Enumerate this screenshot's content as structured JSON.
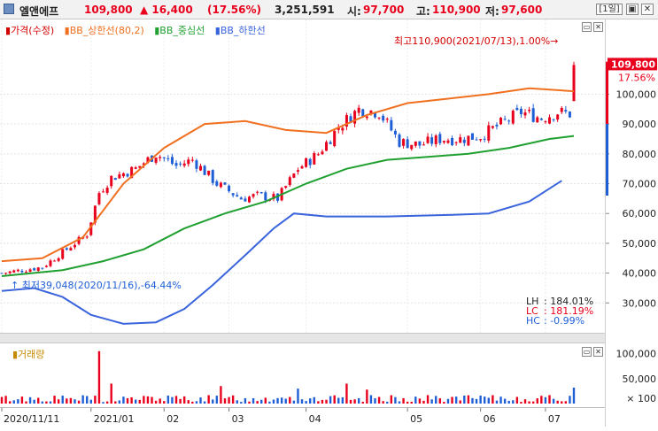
{
  "header": {
    "stock_name": "엘앤에프",
    "price": "109,800",
    "change": "▲ 16,400",
    "change_pct": "(17.56%)",
    "volume": "3,251,591",
    "open_label": "시:",
    "open": "97,700",
    "high_label": "고:",
    "high": "110,900",
    "low_label": "저:",
    "low": "97,600",
    "period_button": "[1일]",
    "colors": {
      "up": "#e8001c",
      "down": "#1f5fd6"
    }
  },
  "legend": {
    "price": "가격(수정)",
    "bb_upper": "BB_상한선(80,2)",
    "bb_mid": "BB_중심선",
    "bb_lower": "BB_하한선",
    "colors": {
      "price": "#d40000",
      "bb_upper": "#f07020",
      "bb_mid": "#20a030",
      "bb_lower": "#3a64dc"
    }
  },
  "annotations": {
    "high_note": "최고110,900(2021/07/13),1.00%→",
    "low_note": "↑ 최저39,048(2020/11/16),-64.44%",
    "stats": [
      {
        "label": "LH",
        "value": ": 184.01%",
        "color": "#222222"
      },
      {
        "label": "LC",
        "value": ": 181.19%",
        "color": "#e8001c"
      },
      {
        "label": "HC",
        "value": ": -0.99%",
        "color": "#1f5fd6"
      }
    ]
  },
  "price_axis": {
    "ticks": [
      "100,000",
      "90,000",
      "80,000",
      "70,000",
      "60,000",
      "50,000",
      "40,000",
      "30,000"
    ],
    "last_price": "109,800",
    "last_pct": "17.56%"
  },
  "volume_pane": {
    "label": "거래량",
    "ticks": [
      "100,000",
      "50,000"
    ],
    "unit": "× 100"
  },
  "date_axis": {
    "labels": [
      "2020/11/11",
      "2021/01",
      "02",
      "03",
      "04",
      "05",
      "06",
      "07"
    ]
  },
  "chart_data": {
    "type": "candlestick",
    "title": "엘앤에프",
    "ylim": [
      20000,
      112000
    ],
    "x_range": [
      "2020/11/11",
      "2021/07/13"
    ],
    "price_keypoints": [
      {
        "x": 0,
        "close": 40000
      },
      {
        "x": 10,
        "close": 42000
      },
      {
        "x": 16,
        "close": 48000
      },
      {
        "x": 21,
        "close": 53000
      },
      {
        "x": 24,
        "close": 67000
      },
      {
        "x": 27,
        "close": 72000
      },
      {
        "x": 33,
        "close": 75000
      },
      {
        "x": 38,
        "close": 80000
      },
      {
        "x": 43,
        "close": 76000
      },
      {
        "x": 47,
        "close": 78000
      },
      {
        "x": 53,
        "close": 70000
      },
      {
        "x": 59,
        "close": 65000
      },
      {
        "x": 63,
        "close": 66000
      },
      {
        "x": 68,
        "close": 65000
      },
      {
        "x": 73,
        "close": 75000
      },
      {
        "x": 78,
        "close": 80000
      },
      {
        "x": 83,
        "close": 89000
      },
      {
        "x": 88,
        "close": 95000
      },
      {
        "x": 93,
        "close": 94000
      },
      {
        "x": 98,
        "close": 84000
      },
      {
        "x": 103,
        "close": 83000
      },
      {
        "x": 108,
        "close": 85000
      },
      {
        "x": 113,
        "close": 85000
      },
      {
        "x": 118,
        "close": 86000
      },
      {
        "x": 123,
        "close": 90000
      },
      {
        "x": 128,
        "close": 94000
      },
      {
        "x": 133,
        "close": 92000
      },
      {
        "x": 137,
        "close": 94000
      },
      {
        "x": 140,
        "close": 93400
      },
      {
        "x": 141,
        "close": 109800
      }
    ],
    "bb_upper": [
      {
        "x": 0,
        "y": 44000
      },
      {
        "x": 10,
        "y": 45000
      },
      {
        "x": 20,
        "y": 52000
      },
      {
        "x": 30,
        "y": 70000
      },
      {
        "x": 40,
        "y": 82000
      },
      {
        "x": 50,
        "y": 90000
      },
      {
        "x": 60,
        "y": 91000
      },
      {
        "x": 70,
        "y": 88000
      },
      {
        "x": 80,
        "y": 87000
      },
      {
        "x": 90,
        "y": 93000
      },
      {
        "x": 100,
        "y": 97000
      },
      {
        "x": 110,
        "y": 98500
      },
      {
        "x": 120,
        "y": 100000
      },
      {
        "x": 130,
        "y": 102000
      },
      {
        "x": 141,
        "y": 101000
      }
    ],
    "bb_mid": [
      {
        "x": 0,
        "y": 39000
      },
      {
        "x": 15,
        "y": 41000
      },
      {
        "x": 25,
        "y": 44000
      },
      {
        "x": 35,
        "y": 48000
      },
      {
        "x": 45,
        "y": 55000
      },
      {
        "x": 55,
        "y": 60000
      },
      {
        "x": 65,
        "y": 64000
      },
      {
        "x": 75,
        "y": 70000
      },
      {
        "x": 85,
        "y": 75000
      },
      {
        "x": 95,
        "y": 78000
      },
      {
        "x": 105,
        "y": 79000
      },
      {
        "x": 115,
        "y": 80000
      },
      {
        "x": 125,
        "y": 82000
      },
      {
        "x": 135,
        "y": 85000
      },
      {
        "x": 141,
        "y": 86000
      }
    ],
    "bb_lower": [
      {
        "x": 0,
        "y": 34000
      },
      {
        "x": 8,
        "y": 35000
      },
      {
        "x": 15,
        "y": 32000
      },
      {
        "x": 22,
        "y": 26000
      },
      {
        "x": 30,
        "y": 23000
      },
      {
        "x": 38,
        "y": 23500
      },
      {
        "x": 45,
        "y": 28000
      },
      {
        "x": 52,
        "y": 36000
      },
      {
        "x": 60,
        "y": 46000
      },
      {
        "x": 67,
        "y": 55000
      },
      {
        "x": 72,
        "y": 60000
      },
      {
        "x": 80,
        "y": 59000
      },
      {
        "x": 95,
        "y": 59000
      },
      {
        "x": 110,
        "y": 59500
      },
      {
        "x": 120,
        "y": 60000
      },
      {
        "x": 130,
        "y": 64000
      },
      {
        "x": 138,
        "y": 71000
      }
    ],
    "volume_spikes": [
      {
        "x": 24,
        "v": 105000
      },
      {
        "x": 27,
        "v": 40000
      },
      {
        "x": 54,
        "v": 35000
      },
      {
        "x": 73,
        "v": 30000
      },
      {
        "x": 85,
        "v": 40000
      },
      {
        "x": 90,
        "v": 28000
      },
      {
        "x": 141,
        "v": 32000
      }
    ],
    "volume_ylim": [
      0,
      110000
    ]
  }
}
